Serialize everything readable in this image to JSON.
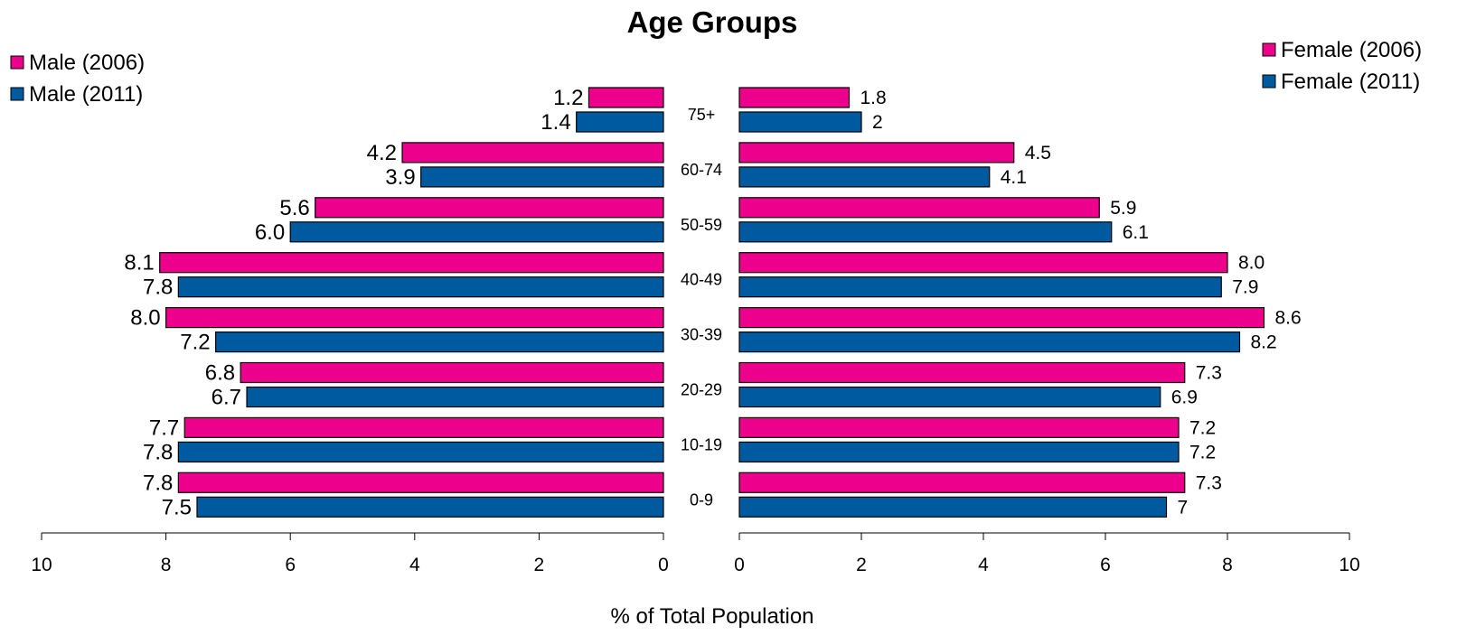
{
  "chart_data": {
    "type": "bar",
    "title": "Age Groups",
    "xlabel": "% of Total Population",
    "categories": [
      "75+",
      "60-74",
      "50-59",
      "40-49",
      "30-39",
      "20-29",
      "10-19",
      "0-9"
    ],
    "xlim": [
      0,
      10
    ],
    "x_ticks": [
      "0",
      "2",
      "4",
      "6",
      "8",
      "10"
    ],
    "grid": false,
    "left_panel": {
      "legend_position": "top-left",
      "series": [
        {
          "name": "Male (2006)",
          "color": "#ec008c",
          "values": [
            1.2,
            4.2,
            5.6,
            8.1,
            8.0,
            6.8,
            7.7,
            7.8
          ],
          "labels": [
            "1.2",
            "4.2",
            "5.6",
            "8.1",
            "8.0",
            "6.8",
            "7.7",
            "7.8"
          ]
        },
        {
          "name": "Male (2011)",
          "color": "#005aa0",
          "values": [
            1.4,
            3.9,
            6.0,
            7.8,
            7.2,
            6.7,
            7.8,
            7.5
          ],
          "labels": [
            "1.4",
            "3.9",
            "6.0",
            "7.8",
            "7.2",
            "6.7",
            "7.8",
            "7.5"
          ]
        }
      ]
    },
    "right_panel": {
      "legend_position": "top-right",
      "series": [
        {
          "name": "Female (2006)",
          "color": "#ec008c",
          "values": [
            1.8,
            4.5,
            5.9,
            8.0,
            8.6,
            7.3,
            7.2,
            7.3
          ],
          "labels": [
            "1.8",
            "4.5",
            "5.9",
            "8.0",
            "8.6",
            "7.3",
            "7.2",
            "7.3"
          ]
        },
        {
          "name": "Female (2011)",
          "color": "#005aa0",
          "values": [
            2,
            4.1,
            6.1,
            7.9,
            8.2,
            6.9,
            7.2,
            7
          ],
          "labels": [
            "2",
            "4.1",
            "6.1",
            "7.9",
            "8.2",
            "6.9",
            "7.2",
            "7"
          ]
        }
      ]
    }
  }
}
